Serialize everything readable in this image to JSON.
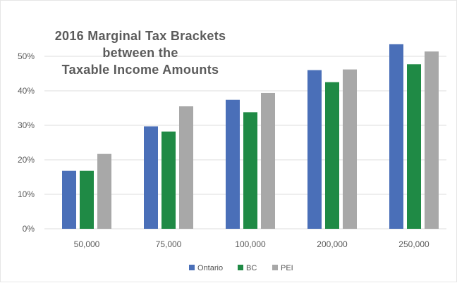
{
  "chart_data": {
    "type": "bar",
    "title": [
      "2016 Marginal Tax Brackets",
      "between the",
      "Taxable Income Amounts"
    ],
    "categories": [
      "50,000",
      "75,000",
      "100,000",
      "200,000",
      "250,000"
    ],
    "series": [
      {
        "name": "Ontario",
        "color": "#4a6fb8",
        "values": [
          16.8,
          29.7,
          37.4,
          46.0,
          53.5
        ]
      },
      {
        "name": "BC",
        "color": "#1f8a45",
        "values": [
          16.8,
          28.2,
          33.8,
          42.5,
          47.7
        ]
      },
      {
        "name": "PEI",
        "color": "#a8a8a8",
        "values": [
          21.7,
          35.5,
          39.4,
          46.2,
          51.4
        ]
      }
    ],
    "yticks": [
      "0%",
      "10%",
      "20%",
      "30%",
      "40%",
      "50%"
    ],
    "ylim": [
      0,
      55
    ],
    "grid": true,
    "legend_position": "bottom-center"
  }
}
